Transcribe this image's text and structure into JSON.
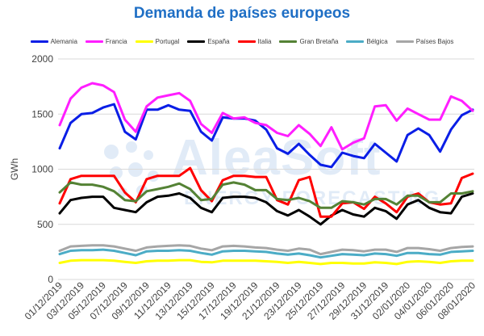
{
  "chart_data": {
    "type": "line",
    "title": "Demanda de países europeos",
    "ylabel": "GWh",
    "xlabel": "",
    "ylim": [
      0,
      2000
    ],
    "yticks": [
      0,
      500,
      1000,
      1500,
      2000
    ],
    "ytick_labels": [
      "0",
      "500",
      "1000",
      "1500",
      "2000"
    ],
    "grid": "horizontal",
    "legend_position": "top",
    "x": [
      "01/12/2019",
      "02/12/2019",
      "03/12/2019",
      "04/12/2019",
      "05/12/2019",
      "06/12/2019",
      "07/12/2019",
      "08/12/2019",
      "09/12/2019",
      "10/12/2019",
      "11/12/2019",
      "12/12/2019",
      "13/12/2019",
      "14/12/2019",
      "15/12/2019",
      "16/12/2019",
      "17/12/2019",
      "18/12/2019",
      "19/12/2019",
      "20/12/2019",
      "21/12/2019",
      "22/12/2019",
      "23/12/2019",
      "24/12/2019",
      "25/12/2019",
      "26/12/2019",
      "27/12/2019",
      "28/12/2019",
      "29/12/2019",
      "30/12/2019",
      "31/12/2019",
      "01/01/2020",
      "02/01/2020",
      "03/01/2020",
      "04/01/2020",
      "05/01/2020",
      "06/01/2020",
      "07/01/2020",
      "08/01/2020"
    ],
    "xtick_labels": [
      "01/12/2019",
      "03/12/2019",
      "05/12/2019",
      "07/12/2019",
      "09/12/2019",
      "11/12/2019",
      "13/12/2019",
      "15/12/2019",
      "17/12/2019",
      "19/12/2019",
      "21/12/2019",
      "23/12/2019",
      "25/12/2019",
      "27/12/2019",
      "29/12/2019",
      "31/12/2019",
      "02/01/2020",
      "04/01/2020",
      "06/01/2020",
      "08/01/2020"
    ],
    "series": [
      {
        "name": "Alemania",
        "color": "#0a1ee6",
        "values": [
          1190,
          1420,
          1500,
          1510,
          1560,
          1590,
          1340,
          1270,
          1540,
          1540,
          1580,
          1540,
          1530,
          1340,
          1260,
          1470,
          1460,
          1460,
          1440,
          1360,
          1190,
          1140,
          1230,
          1130,
          1040,
          1020,
          1150,
          1120,
          1100,
          1230,
          1150,
          1070,
          1310,
          1370,
          1310,
          1160,
          1360,
          1490,
          1540
        ]
      },
      {
        "name": "Francia",
        "color": "#ff1eff",
        "values": [
          1400,
          1640,
          1740,
          1780,
          1760,
          1700,
          1450,
          1340,
          1570,
          1650,
          1670,
          1690,
          1620,
          1410,
          1330,
          1510,
          1460,
          1470,
          1420,
          1400,
          1330,
          1300,
          1400,
          1320,
          1210,
          1380,
          1180,
          1240,
          1280,
          1570,
          1580,
          1440,
          1550,
          1500,
          1450,
          1450,
          1660,
          1620,
          1530
        ]
      },
      {
        "name": "Portugal",
        "color": "#ffff00",
        "values": [
          150,
          170,
          175,
          175,
          175,
          170,
          160,
          150,
          165,
          170,
          170,
          175,
          175,
          160,
          155,
          170,
          170,
          170,
          170,
          165,
          160,
          150,
          160,
          150,
          140,
          150,
          150,
          145,
          145,
          155,
          150,
          140,
          160,
          165,
          160,
          150,
          165,
          170,
          170
        ]
      },
      {
        "name": "España",
        "color": "#000000",
        "values": [
          600,
          720,
          740,
          750,
          750,
          650,
          630,
          610,
          700,
          750,
          760,
          780,
          740,
          650,
          610,
          740,
          750,
          750,
          740,
          700,
          620,
          580,
          630,
          570,
          500,
          580,
          630,
          590,
          570,
          650,
          620,
          550,
          680,
          720,
          650,
          610,
          600,
          750,
          780
        ]
      },
      {
        "name": "Italia",
        "color": "#ff0000",
        "values": [
          690,
          910,
          940,
          940,
          940,
          940,
          790,
          700,
          910,
          940,
          940,
          940,
          1010,
          810,
          710,
          900,
          940,
          940,
          930,
          930,
          720,
          680,
          900,
          930,
          570,
          570,
          690,
          700,
          640,
          750,
          690,
          610,
          750,
          780,
          700,
          680,
          690,
          920,
          960
        ]
      },
      {
        "name": "Gran Bretaña",
        "color": "#548235",
        "values": [
          790,
          880,
          860,
          860,
          840,
          800,
          720,
          710,
          800,
          820,
          840,
          870,
          820,
          720,
          730,
          860,
          880,
          860,
          810,
          810,
          730,
          720,
          740,
          710,
          650,
          650,
          710,
          700,
          680,
          730,
          730,
          680,
          760,
          760,
          700,
          700,
          780,
          780,
          800
        ]
      },
      {
        "name": "Bélgica",
        "color": "#4bacc6",
        "values": [
          230,
          260,
          265,
          265,
          270,
          260,
          240,
          220,
          255,
          260,
          260,
          265,
          260,
          240,
          225,
          255,
          260,
          260,
          255,
          250,
          235,
          225,
          235,
          220,
          200,
          215,
          230,
          225,
          220,
          235,
          230,
          215,
          240,
          240,
          230,
          225,
          250,
          255,
          260
        ]
      },
      {
        "name": "Países Bajos",
        "color": "#a6a6a6",
        "values": [
          260,
          300,
          305,
          310,
          310,
          300,
          280,
          260,
          290,
          300,
          305,
          310,
          305,
          280,
          265,
          300,
          305,
          300,
          290,
          285,
          270,
          260,
          280,
          270,
          230,
          250,
          270,
          265,
          255,
          270,
          270,
          250,
          285,
          285,
          275,
          260,
          285,
          295,
          300
        ]
      }
    ]
  },
  "watermark": {
    "brand": "AleaSoft",
    "sub": "ENERGY FORECASTING"
  }
}
